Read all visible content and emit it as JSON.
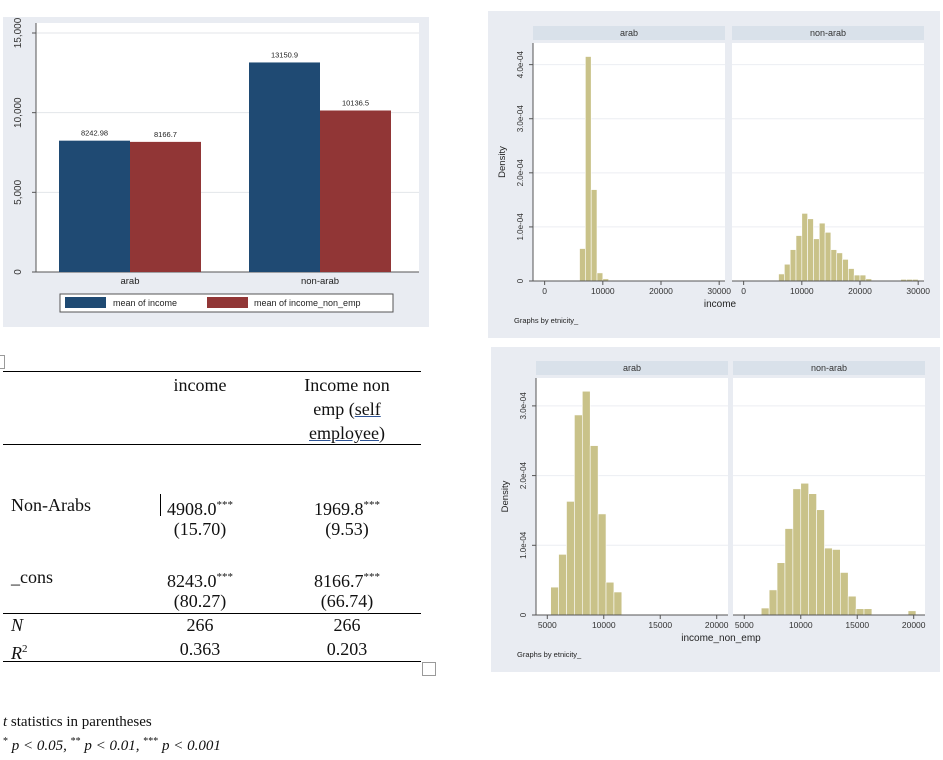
{
  "bar_panel": {
    "chart_data": {
      "type": "bar",
      "categories": [
        "arab",
        "non-arab"
      ],
      "series": [
        {
          "name": "mean of income",
          "values": [
            8242.98,
            13150.9
          ],
          "color": "#1f4a73"
        },
        {
          "name": "mean of income_non_emp",
          "values": [
            8166.7,
            10136.5
          ],
          "color": "#913636"
        }
      ],
      "value_labels": [
        [
          "8242.98",
          "13150.9"
        ],
        [
          "8166.7",
          "10136.5"
        ]
      ],
      "y_ticks": [
        "0",
        "5,000",
        "10,000",
        "15,000"
      ],
      "ylim": [
        0,
        15000
      ],
      "legend_position": "bottom",
      "background": "#e9ecf2"
    }
  },
  "hist_income": {
    "chart_data": {
      "type": "bar",
      "panels": [
        {
          "title": "arab",
          "bin_width": 1000,
          "x": [
            6000,
            7000,
            8000,
            9000,
            10000,
            11000
          ],
          "y": [
            6e-05,
            0.000415,
            0.000169,
            1.5e-05,
            4e-06,
            1e-06
          ]
        },
        {
          "title": "non-arab",
          "bin_width": 1000,
          "x": [
            6000,
            7000,
            8000,
            9000,
            10000,
            11000,
            12000,
            13000,
            14000,
            15000,
            16000,
            17000,
            18000,
            19000,
            20000,
            21000,
            27000,
            28000,
            29000
          ],
          "y": [
            1.3e-05,
            3.1e-05,
            5.8e-05,
            8.4e-05,
            0.000125,
            0.000115,
            7.8e-05,
            0.000107,
            9e-05,
            5.8e-05,
            5.2e-05,
            4e-05,
            2.3e-05,
            1.1e-05,
            1.1e-05,
            4e-06,
            3e-06,
            3e-06,
            3e-06
          ]
        }
      ],
      "xlabel": "income",
      "ylabel": "Density",
      "x_ticks": [
        "0",
        "10000",
        "20000",
        "30000"
      ],
      "y_ticks": [
        "0",
        "1.0e-04",
        "2.0e-04",
        "3.0e-04",
        "4.0e-04"
      ],
      "xlim": [
        -2000,
        31000
      ],
      "ylim": [
        0,
        0.00044
      ],
      "note": "Graphs by etnicity_"
    }
  },
  "hist_nonemp": {
    "chart_data": {
      "type": "bar",
      "panels": [
        {
          "title": "arab",
          "bin_width": 700,
          "x": [
            5300,
            6000,
            6700,
            7400,
            8100,
            8800,
            9500,
            10200,
            10900,
            11600
          ],
          "y": [
            4e-05,
            8.7e-05,
            0.000163,
            0.000287,
            0.000321,
            0.000243,
            0.000145,
            4.7e-05,
            3.3e-05,
            1e-06
          ]
        },
        {
          "title": "non-arab",
          "bin_width": 700,
          "x": [
            6500,
            7200,
            7900,
            8600,
            9300,
            10000,
            10700,
            11400,
            12100,
            12800,
            13500,
            14200,
            14900,
            15600,
            16300,
            19500
          ],
          "y": [
            1e-05,
            3.6e-05,
            7.5e-05,
            0.000124,
            0.000181,
            0.000189,
            0.000174,
            0.000151,
            9.6e-05,
            9.4e-05,
            6.1e-05,
            2.7e-05,
            9e-06,
            9e-06,
            1e-06,
            6e-06
          ]
        }
      ],
      "xlabel": "income_non_emp",
      "ylabel": "Density",
      "x_ticks": [
        "5000",
        "10000",
        "15000",
        "20000"
      ],
      "y_ticks": [
        "0",
        "1.0e-04",
        "2.0e-04",
        "3.0e-04"
      ],
      "xlim": [
        4000,
        21000
      ],
      "ylim": [
        0,
        0.00034
      ],
      "note": "Graphs by etnicity_"
    }
  },
  "table": {
    "col1_header": "income",
    "col2_header_line1": "Income non",
    "col2_header_line2_a": "emp (",
    "col2_header_line2_b": "self",
    "col2_header_line3_a": "employee",
    "col2_header_line3_b": ")",
    "row1_label": "Non-Arabs",
    "row1_c1": "4908.0",
    "row1_c1_stars": "***",
    "row1_c1_t": "(15.70)",
    "row1_c2": "1969.8",
    "row1_c2_stars": "***",
    "row1_c2_t": "(9.53)",
    "row2_label": "_cons",
    "row2_c1": "8243.0",
    "row2_c1_stars": "***",
    "row2_c1_t": "(80.27)",
    "row2_c2": "8166.7",
    "row2_c2_stars": "***",
    "row2_c2_t": "(66.74)",
    "n_label": "N",
    "n_c1": "266",
    "n_c2": "266",
    "r2_label": "R",
    "r2_sup": "2",
    "r2_c1": "0.363",
    "r2_c2": "0.203"
  },
  "notes": {
    "line1_italic": "t",
    "line1_rest": " statistics in parentheses",
    "s1": "*",
    "p1": " p < 0.05, ",
    "s2": "**",
    "p2": " p < 0.01, ",
    "s3": "***",
    "p3": " p < 0.001"
  }
}
